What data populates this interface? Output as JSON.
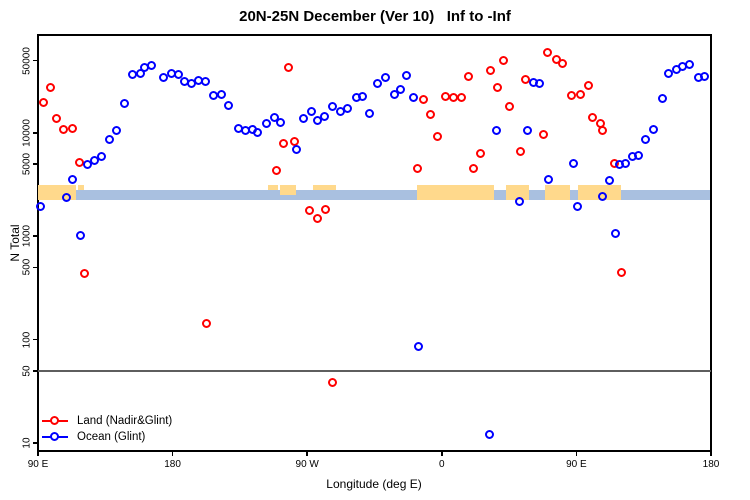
{
  "chart_data": {
    "type": "scatter",
    "title": "20N-25N December (Ver 10)   Inf to -Inf",
    "xlabel": "Longitude (deg E)",
    "ylabel": "N Total",
    "x_axis": {
      "min": 90,
      "max": 540,
      "note": "longitude axis runs eastward from 90E wrapping 450 degrees: 90E,180,90W,0,90E,180",
      "ticks": [
        {
          "v": 90,
          "label": "90 E"
        },
        {
          "v": 180,
          "label": "180"
        },
        {
          "v": 270,
          "label": "90 W"
        },
        {
          "v": 360,
          "label": "0"
        },
        {
          "v": 450,
          "label": "90 E"
        },
        {
          "v": 540,
          "label": "180"
        }
      ]
    },
    "y_axis": {
      "scale": "log",
      "log_min": 0.928,
      "log_max": 4.946,
      "ticks": [
        {
          "v": 10,
          "label": "10"
        },
        {
          "v": 50,
          "label": "50"
        },
        {
          "v": 100,
          "label": "100"
        },
        {
          "v": 500,
          "label": "500"
        },
        {
          "v": 1000,
          "label": "1000"
        },
        {
          "v": 5000,
          "label": "5000"
        },
        {
          "v": 10000,
          "label": "10000"
        },
        {
          "v": 50000,
          "label": "50000"
        }
      ]
    },
    "reference_line": {
      "y": 50,
      "color": "#5E5E5E"
    },
    "map_strip": {
      "ocean_color": "#A9C0E0",
      "land_color": "#FFD98C",
      "ocean_n_top": 2800,
      "ocean_n_bottom": 2220,
      "land_n_top": 3100,
      "land_segments": [
        {
          "lon0": 90,
          "lon1": 115.4,
          "style": "full"
        },
        {
          "lon0": 116.7,
          "lon1": 120.8,
          "style": "top"
        },
        {
          "lon0": 243.8,
          "lon1": 250.5,
          "style": "top"
        },
        {
          "lon0": 251.8,
          "lon1": 262.5,
          "style": "upper"
        },
        {
          "lon0": 273.9,
          "lon1": 289.2,
          "style": "top"
        },
        {
          "lon0": 343.4,
          "lon1": 394.9,
          "style": "full"
        },
        {
          "lon0": 402.9,
          "lon1": 418.3,
          "style": "full"
        },
        {
          "lon0": 429.0,
          "lon1": 445.7,
          "style": "full"
        },
        {
          "lon0": 451.1,
          "lon1": 479.9,
          "style": "full"
        }
      ]
    },
    "legend": [
      {
        "label": "Land (Nadir&Glint)",
        "color": "#FF0000"
      },
      {
        "label": "Ocean (Glint)",
        "color": "#0000FF"
      }
    ],
    "series": [
      {
        "name": "Land (Nadir&Glint)",
        "color": "#FF0000",
        "points": [
          [
            98.7,
            27300
          ],
          [
            94,
            19600
          ],
          [
            102.7,
            13700
          ],
          [
            107.4,
            10700
          ],
          [
            113.4,
            11000
          ],
          [
            118.1,
            5140
          ],
          [
            121.4,
            434
          ],
          [
            203,
            143
          ],
          [
            249.8,
            4310
          ],
          [
            254.5,
            7850
          ],
          [
            257.8,
            42700
          ],
          [
            261.8,
            8200
          ],
          [
            271.9,
            1770
          ],
          [
            277.2,
            1480
          ],
          [
            282.6,
            1800
          ],
          [
            287.2,
            38
          ],
          [
            344.1,
            4500
          ],
          [
            348.1,
            20900
          ],
          [
            352.8,
            15000
          ],
          [
            357.5,
            9160
          ],
          [
            362.8,
            22400
          ],
          [
            368.2,
            21900
          ],
          [
            373.5,
            21900
          ],
          [
            378.2,
            34900
          ],
          [
            381.5,
            4500
          ],
          [
            386.2,
            6280
          ],
          [
            392.9,
            39900
          ],
          [
            397.6,
            27300
          ],
          [
            401.6,
            49800
          ],
          [
            405.6,
            17900
          ],
          [
            413,
            6560
          ],
          [
            416.3,
            32700
          ],
          [
            428.3,
            9590
          ],
          [
            431,
            59500
          ],
          [
            437,
            50900
          ],
          [
            441,
            46600
          ],
          [
            447,
            22900
          ],
          [
            453.1,
            23300
          ],
          [
            458.4,
            28600
          ],
          [
            461.1,
            14000
          ],
          [
            466.4,
            12300
          ],
          [
            467.8,
            10500
          ],
          [
            475.8,
            5030
          ],
          [
            480.5,
            443
          ]
        ]
      },
      {
        "name": "Ocean (Glint)",
        "color": "#0000FF",
        "points": [
          [
            92,
            1930
          ],
          [
            109.4,
            2360
          ],
          [
            113.4,
            3520
          ],
          [
            118.8,
            1010
          ],
          [
            123.4,
            4910
          ],
          [
            128.1,
            5370
          ],
          [
            132.8,
            5880
          ],
          [
            138.1,
            8570
          ],
          [
            142.8,
            10300
          ],
          [
            148.2,
            19100
          ],
          [
            153.5,
            36500
          ],
          [
            158.9,
            37300
          ],
          [
            161.5,
            42700
          ],
          [
            166.2,
            44600
          ],
          [
            174.2,
            34100
          ],
          [
            179.6,
            37300
          ],
          [
            184.3,
            36500
          ],
          [
            188.3,
            31200
          ],
          [
            193,
            29900
          ],
          [
            197.7,
            31900
          ],
          [
            202.3,
            31200
          ],
          [
            207.7,
            22900
          ],
          [
            213,
            23300
          ],
          [
            217.7,
            18300
          ],
          [
            224.4,
            11000
          ],
          [
            229.1,
            10500
          ],
          [
            233.8,
            10700
          ],
          [
            237.1,
            10000
          ],
          [
            243.1,
            12300
          ],
          [
            248.5,
            14000
          ],
          [
            252.5,
            12500
          ],
          [
            263.2,
            6870
          ],
          [
            267.9,
            13700
          ],
          [
            273.2,
            16000
          ],
          [
            277.2,
            13100
          ],
          [
            281.9,
            14300
          ],
          [
            287.2,
            17900
          ],
          [
            292.6,
            16000
          ],
          [
            297.3,
            17100
          ],
          [
            303.3,
            21900
          ],
          [
            307.3,
            22400
          ],
          [
            312,
            15300
          ],
          [
            317.3,
            29900
          ],
          [
            322.7,
            34100
          ],
          [
            328.7,
            23300
          ],
          [
            332.7,
            26100
          ],
          [
            336.7,
            35700
          ],
          [
            341.4,
            21900
          ],
          [
            344.8,
            84
          ],
          [
            392.2,
            12
          ],
          [
            396.9,
            10300
          ],
          [
            412.3,
            2160
          ],
          [
            417.7,
            10300
          ],
          [
            421.7,
            30600
          ],
          [
            425.7,
            29900
          ],
          [
            431.7,
            3520
          ],
          [
            448.4,
            5030
          ],
          [
            451.1,
            1930
          ],
          [
            467.8,
            2410
          ],
          [
            472.5,
            3440
          ],
          [
            476.5,
            1060
          ],
          [
            479.2,
            4910
          ],
          [
            483.2,
            5030
          ],
          [
            487.9,
            5880
          ],
          [
            491.9,
            6010
          ],
          [
            496.6,
            8570
          ],
          [
            501.9,
            10700
          ],
          [
            507.9,
            21400
          ],
          [
            512,
            37300
          ],
          [
            517.3,
            40800
          ],
          [
            521.3,
            43650
          ],
          [
            526,
            45600
          ],
          [
            532,
            34100
          ],
          [
            536,
            34900
          ]
        ]
      }
    ]
  }
}
